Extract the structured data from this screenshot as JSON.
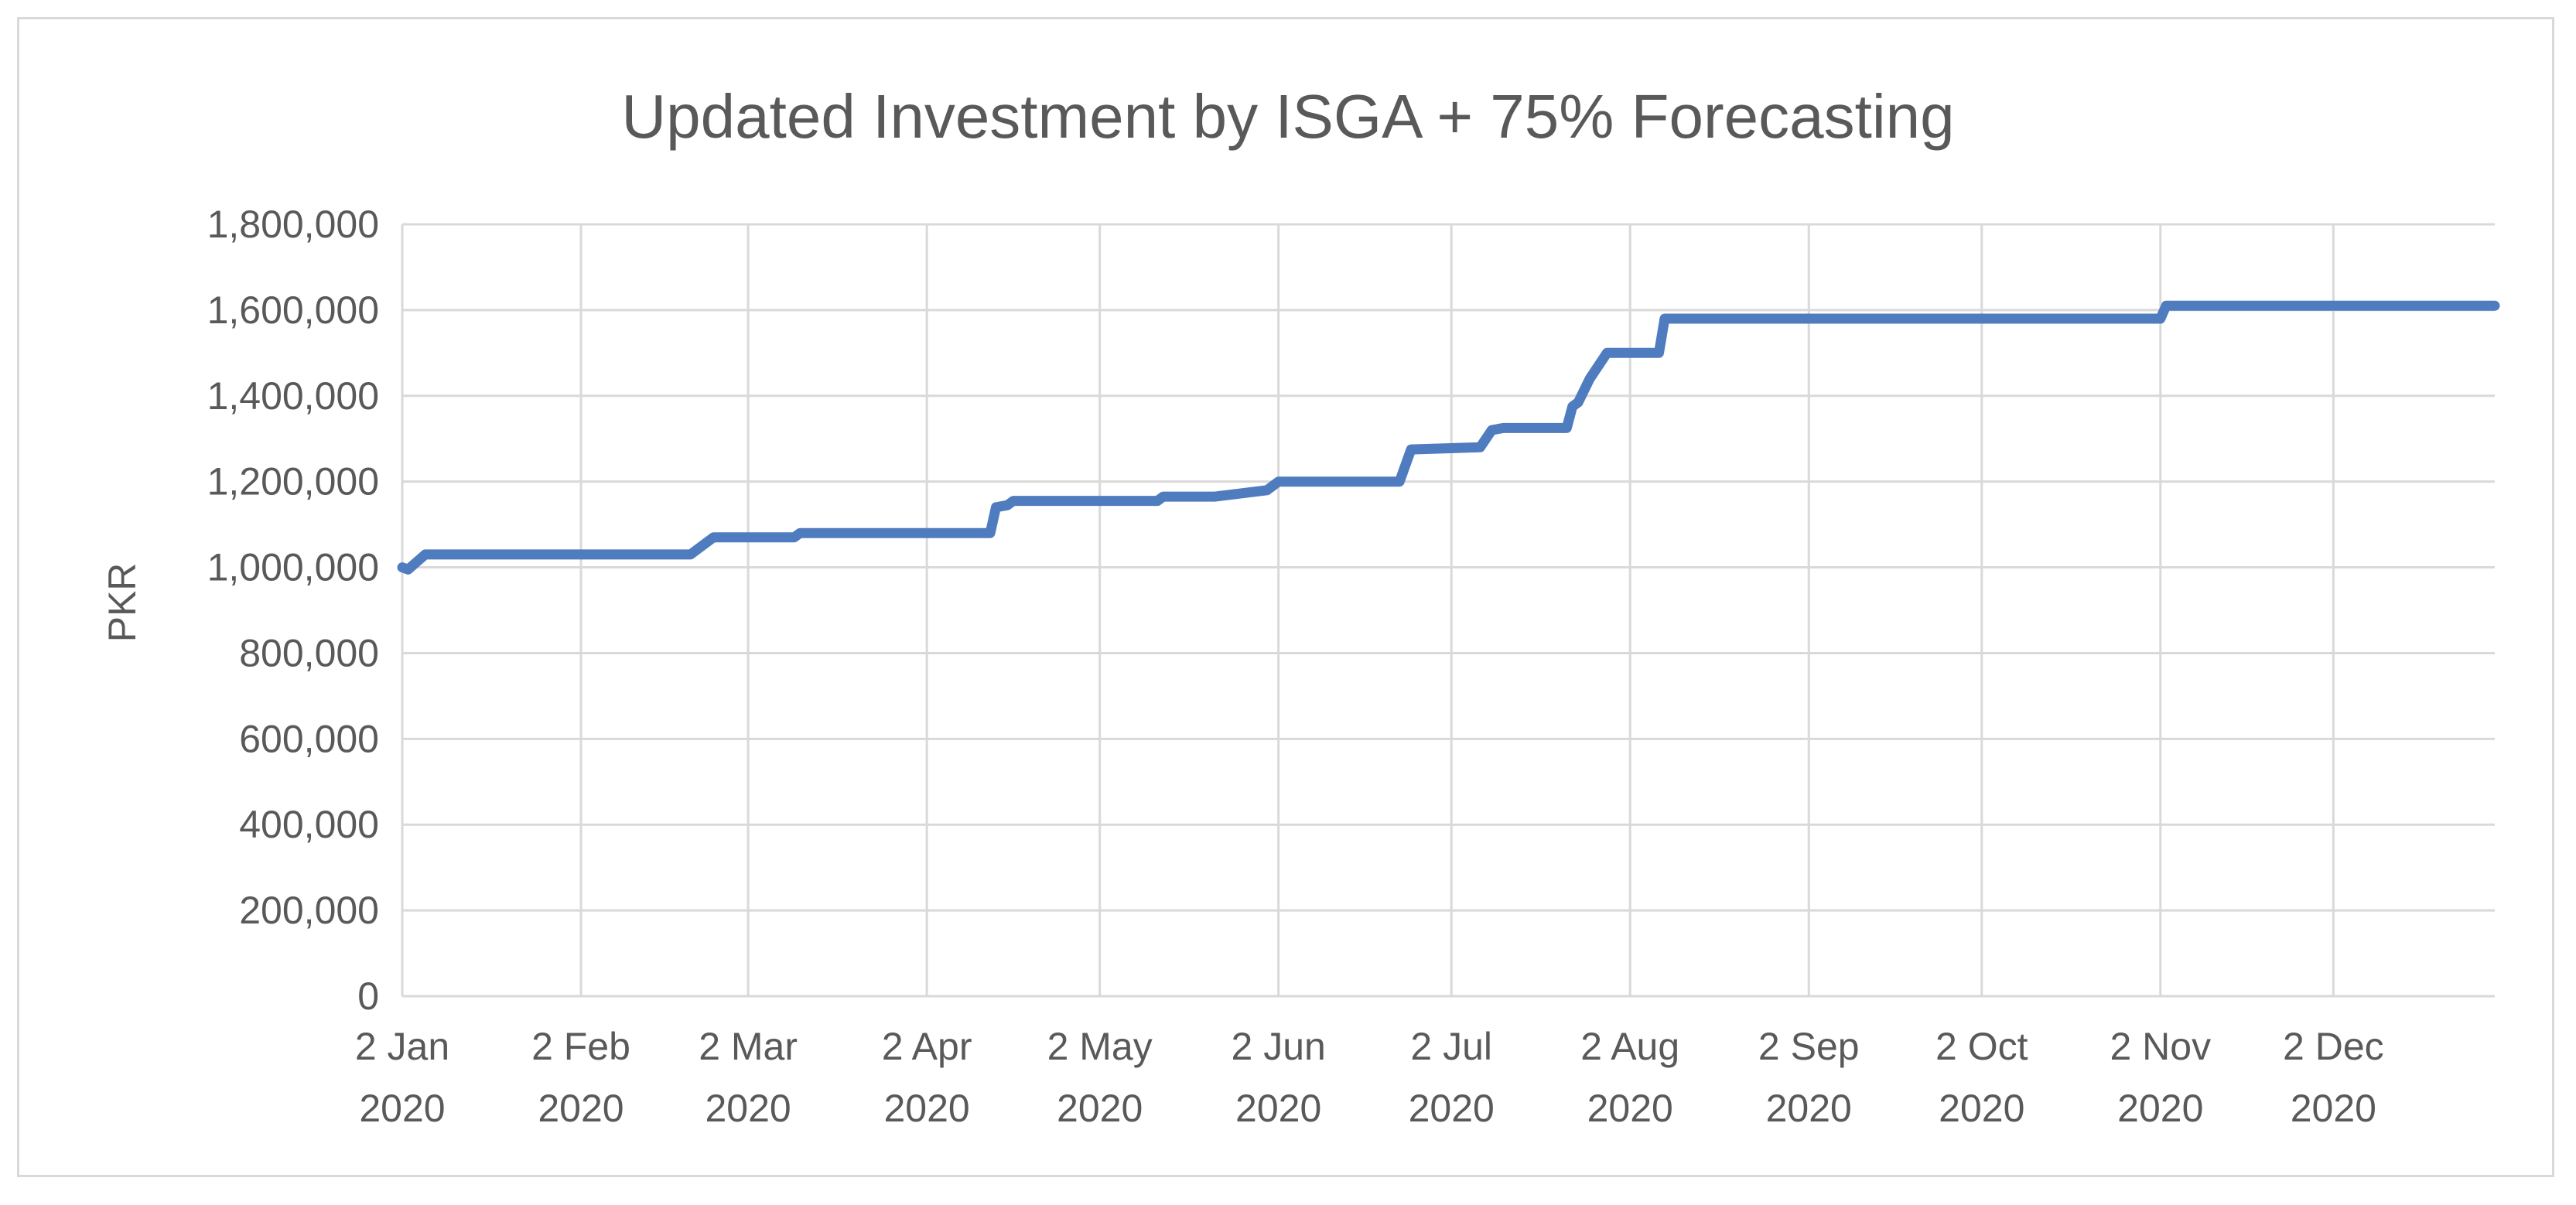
{
  "chart_data": {
    "type": "line",
    "title": "Updated Investment by ISGA + 75% Forecasting",
    "xlabel": "",
    "ylabel": "PKR",
    "ylim": [
      0,
      1800000
    ],
    "y_ticks": [
      0,
      200000,
      400000,
      600000,
      800000,
      1000000,
      1200000,
      1400000,
      1600000,
      1800000
    ],
    "y_tick_labels": [
      "0",
      "200,000",
      "400,000",
      "600,000",
      "800,000",
      "1,000,000",
      "1,200,000",
      "1,400,000",
      "1,600,000",
      "1,800,000"
    ],
    "x_range": [
      0,
      363
    ],
    "x_unit": "days since 2 Jan 2020",
    "x_ticks": [
      {
        "day": 0,
        "line1": "2 Jan",
        "line2": "2020"
      },
      {
        "day": 31,
        "line1": "2 Feb",
        "line2": "2020"
      },
      {
        "day": 60,
        "line1": "2 Mar",
        "line2": "2020"
      },
      {
        "day": 91,
        "line1": "2 Apr",
        "line2": "2020"
      },
      {
        "day": 121,
        "line1": "2 May",
        "line2": "2020"
      },
      {
        "day": 152,
        "line1": "2 Jun",
        "line2": "2020"
      },
      {
        "day": 182,
        "line1": "2 Jul",
        "line2": "2020"
      },
      {
        "day": 213,
        "line1": "2 Aug",
        "line2": "2020"
      },
      {
        "day": 244,
        "line1": "2 Sep",
        "line2": "2020"
      },
      {
        "day": 274,
        "line1": "2 Oct",
        "line2": "2020"
      },
      {
        "day": 305,
        "line1": "2 Nov",
        "line2": "2020"
      },
      {
        "day": 335,
        "line1": "2 Dec",
        "line2": "2020"
      }
    ],
    "grid": true,
    "legend": "none",
    "series": [
      {
        "name": "Updated Investment",
        "color": "#4F7CBF",
        "points": [
          [
            0,
            1000000
          ],
          [
            1,
            995000
          ],
          [
            4,
            1030000
          ],
          [
            50,
            1030000
          ],
          [
            54,
            1070000
          ],
          [
            68,
            1070000
          ],
          [
            69,
            1080000
          ],
          [
            102,
            1080000
          ],
          [
            103,
            1140000
          ],
          [
            105,
            1145000
          ],
          [
            106,
            1155000
          ],
          [
            131,
            1155000
          ],
          [
            132,
            1165000
          ],
          [
            141,
            1165000
          ],
          [
            150,
            1180000
          ],
          [
            152,
            1200000
          ],
          [
            173,
            1200000
          ],
          [
            175,
            1275000
          ],
          [
            187,
            1280000
          ],
          [
            189,
            1320000
          ],
          [
            191,
            1325000
          ],
          [
            202,
            1325000
          ],
          [
            203,
            1375000
          ],
          [
            204,
            1385000
          ],
          [
            206,
            1440000
          ],
          [
            209,
            1500000
          ],
          [
            218,
            1500000
          ],
          [
            219,
            1580000
          ],
          [
            305,
            1580000
          ],
          [
            306,
            1610000
          ],
          [
            363,
            1610000
          ]
        ]
      }
    ]
  }
}
